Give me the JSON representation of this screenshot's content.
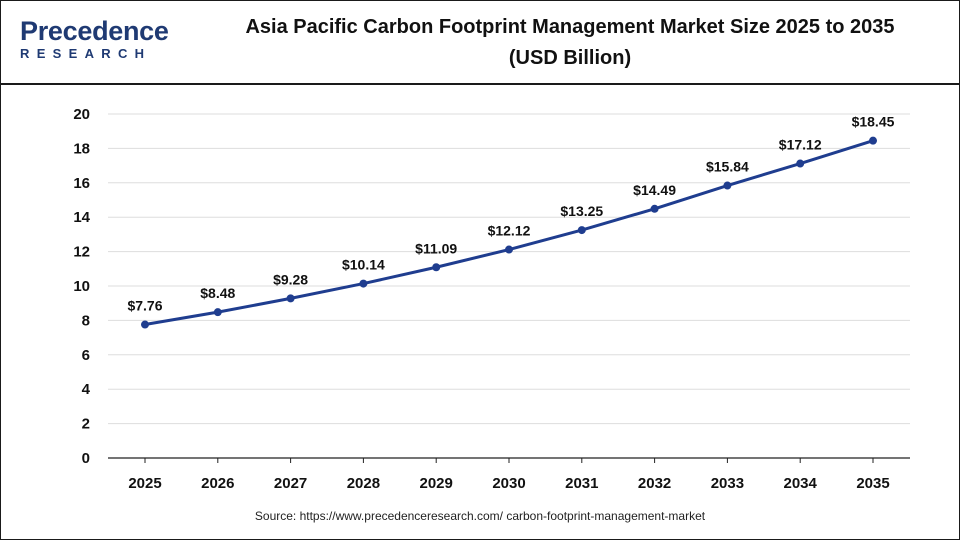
{
  "header": {
    "logo_word": "Precedence",
    "logo_sub": "RESEARCH",
    "title_line1": "Asia Pacific Carbon Footprint Management Market Size 2025 to 2035",
    "title_line2": "(USD Billion)"
  },
  "source": "Source: https://www.precedenceresearch.com/ carbon-footprint-management-market",
  "colors": {
    "line": "#1f3d8f",
    "point": "#1f3d8f",
    "grid": "#dddddd",
    "axis": "#222222",
    "brand": "#1f3a73",
    "accent": "#3aa0d8"
  },
  "chart_data": {
    "type": "line",
    "title": "Asia Pacific Carbon Footprint Management Market Size 2025 to 2035 (USD Billion)",
    "categories": [
      "2025",
      "2026",
      "2027",
      "2028",
      "2029",
      "2030",
      "2031",
      "2032",
      "2033",
      "2034",
      "2035"
    ],
    "series": [
      {
        "values": [
          7.76,
          8.48,
          9.28,
          10.14,
          11.09,
          12.12,
          13.25,
          14.49,
          15.84,
          17.12,
          18.45
        ],
        "labels": [
          "$7.76",
          "$8.48",
          "$9.28",
          "$10.14",
          "$11.09",
          "$12.12",
          "$13.25",
          "$14.49",
          "$15.84",
          "$17.12",
          "$18.45"
        ]
      }
    ],
    "ylim": [
      0,
      20
    ],
    "yticks": [
      "0",
      "2",
      "4",
      "6",
      "8",
      "10",
      "12",
      "14",
      "16",
      "18",
      "20"
    ],
    "grid": true,
    "xlabel": "",
    "ylabel": ""
  }
}
